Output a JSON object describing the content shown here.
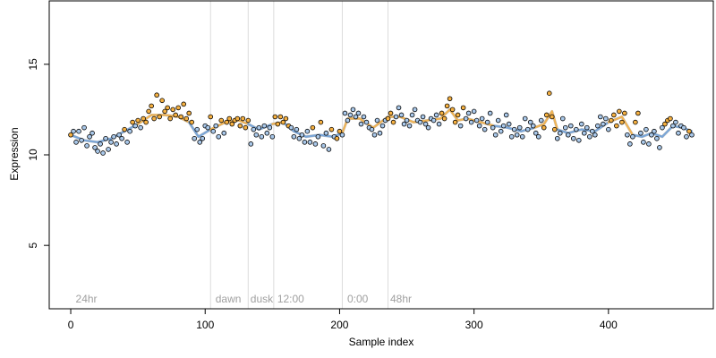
{
  "chart_data": {
    "type": "scatter",
    "title": "",
    "xlabel": "Sample index",
    "ylabel": "Expression",
    "xlim": [
      -16,
      478
    ],
    "ylim": [
      1.5,
      18.5
    ],
    "x_ticks": [
      0,
      100,
      200,
      300,
      400
    ],
    "y_ticks": [
      5,
      10,
      15
    ],
    "grid": false,
    "legend": "none",
    "vlines": [
      104,
      132,
      151,
      202,
      236
    ],
    "annotations": [
      {
        "label": "24hr",
        "x": 3
      },
      {
        "label": "dawn",
        "x": 107
      },
      {
        "label": "dusk",
        "x": 133
      },
      {
        "label": "12:00",
        "x": 153
      },
      {
        "label": "0:00",
        "x": 205
      },
      {
        "label": "48hr",
        "x": 237
      }
    ],
    "colors": {
      "orange": "#f5b041",
      "blue": "#a9c8ea",
      "trend_orange": "#f0b456",
      "trend_blue": "#7aa6d8",
      "trend_grey": "#9a9a9a",
      "vline": "#dcdcdc"
    },
    "trend": [
      [
        0,
        11.1
      ],
      [
        10,
        10.8
      ],
      [
        20,
        10.7
      ],
      [
        30,
        10.9
      ],
      [
        40,
        11.3
      ],
      [
        50,
        11.7
      ],
      [
        60,
        12.2
      ],
      [
        70,
        12.2
      ],
      [
        80,
        12.1
      ],
      [
        88,
        11.8
      ],
      [
        95,
        11.0
      ],
      [
        104,
        11.4
      ],
      [
        115,
        11.8
      ],
      [
        125,
        11.9
      ],
      [
        132,
        11.7
      ],
      [
        140,
        11.4
      ],
      [
        150,
        11.7
      ],
      [
        158,
        11.8
      ],
      [
        166,
        11.3
      ],
      [
        175,
        11.0
      ],
      [
        185,
        11.1
      ],
      [
        195,
        11.0
      ],
      [
        202,
        11.2
      ],
      [
        206,
        12.0
      ],
      [
        215,
        12.0
      ],
      [
        225,
        11.5
      ],
      [
        236,
        12.1
      ],
      [
        245,
        12.1
      ],
      [
        255,
        11.8
      ],
      [
        265,
        11.9
      ],
      [
        275,
        12.0
      ],
      [
        282,
        12.5
      ],
      [
        288,
        11.9
      ],
      [
        295,
        12.0
      ],
      [
        305,
        11.8
      ],
      [
        315,
        11.6
      ],
      [
        325,
        11.5
      ],
      [
        335,
        11.3
      ],
      [
        345,
        11.5
      ],
      [
        352,
        11.7
      ],
      [
        358,
        12.4
      ],
      [
        362,
        11.4
      ],
      [
        370,
        11.2
      ],
      [
        380,
        11.4
      ],
      [
        390,
        11.3
      ],
      [
        400,
        11.8
      ],
      [
        410,
        12.1
      ],
      [
        418,
        11.1
      ],
      [
        425,
        11.0
      ],
      [
        432,
        11.2
      ],
      [
        440,
        11.0
      ],
      [
        448,
        11.6
      ],
      [
        455,
        11.5
      ],
      [
        462,
        11.3
      ]
    ],
    "points": [
      {
        "x": 0,
        "y": 11.1,
        "c": "o"
      },
      {
        "x": 2,
        "y": 11.3,
        "c": "b"
      },
      {
        "x": 4,
        "y": 10.7,
        "c": "b"
      },
      {
        "x": 6,
        "y": 11.3,
        "c": "b"
      },
      {
        "x": 8,
        "y": 10.8,
        "c": "b"
      },
      {
        "x": 10,
        "y": 11.5,
        "c": "b"
      },
      {
        "x": 12,
        "y": 10.5,
        "c": "b"
      },
      {
        "x": 14,
        "y": 11.0,
        "c": "b"
      },
      {
        "x": 16,
        "y": 11.2,
        "c": "b"
      },
      {
        "x": 18,
        "y": 10.4,
        "c": "b"
      },
      {
        "x": 20,
        "y": 10.2,
        "c": "b"
      },
      {
        "x": 22,
        "y": 10.6,
        "c": "b"
      },
      {
        "x": 24,
        "y": 10.1,
        "c": "b"
      },
      {
        "x": 26,
        "y": 10.9,
        "c": "b"
      },
      {
        "x": 28,
        "y": 10.3,
        "c": "b"
      },
      {
        "x": 30,
        "y": 10.7,
        "c": "b"
      },
      {
        "x": 32,
        "y": 11.0,
        "c": "b"
      },
      {
        "x": 34,
        "y": 10.6,
        "c": "b"
      },
      {
        "x": 36,
        "y": 11.1,
        "c": "b"
      },
      {
        "x": 38,
        "y": 10.9,
        "c": "b"
      },
      {
        "x": 40,
        "y": 11.4,
        "c": "o"
      },
      {
        "x": 42,
        "y": 10.7,
        "c": "b"
      },
      {
        "x": 44,
        "y": 11.3,
        "c": "b"
      },
      {
        "x": 46,
        "y": 11.8,
        "c": "o"
      },
      {
        "x": 48,
        "y": 11.6,
        "c": "b"
      },
      {
        "x": 50,
        "y": 11.9,
        "c": "o"
      },
      {
        "x": 52,
        "y": 11.5,
        "c": "b"
      },
      {
        "x": 54,
        "y": 12.0,
        "c": "o"
      },
      {
        "x": 56,
        "y": 11.8,
        "c": "o"
      },
      {
        "x": 58,
        "y": 12.4,
        "c": "o"
      },
      {
        "x": 60,
        "y": 12.7,
        "c": "o"
      },
      {
        "x": 62,
        "y": 12.0,
        "c": "o"
      },
      {
        "x": 64,
        "y": 13.3,
        "c": "o"
      },
      {
        "x": 66,
        "y": 12.1,
        "c": "o"
      },
      {
        "x": 68,
        "y": 13.0,
        "c": "o"
      },
      {
        "x": 70,
        "y": 12.4,
        "c": "o"
      },
      {
        "x": 72,
        "y": 12.6,
        "c": "o"
      },
      {
        "x": 74,
        "y": 12.0,
        "c": "o"
      },
      {
        "x": 76,
        "y": 12.5,
        "c": "o"
      },
      {
        "x": 78,
        "y": 12.2,
        "c": "o"
      },
      {
        "x": 80,
        "y": 12.6,
        "c": "o"
      },
      {
        "x": 82,
        "y": 12.1,
        "c": "o"
      },
      {
        "x": 84,
        "y": 12.8,
        "c": "o"
      },
      {
        "x": 86,
        "y": 12.0,
        "c": "o"
      },
      {
        "x": 88,
        "y": 12.3,
        "c": "o"
      },
      {
        "x": 90,
        "y": 11.8,
        "c": "o"
      },
      {
        "x": 92,
        "y": 10.9,
        "c": "b"
      },
      {
        "x": 94,
        "y": 11.4,
        "c": "b"
      },
      {
        "x": 96,
        "y": 10.7,
        "c": "b"
      },
      {
        "x": 98,
        "y": 10.9,
        "c": "b"
      },
      {
        "x": 100,
        "y": 11.6,
        "c": "b"
      },
      {
        "x": 102,
        "y": 11.5,
        "c": "b"
      },
      {
        "x": 104,
        "y": 12.1,
        "c": "o"
      },
      {
        "x": 106,
        "y": 11.3,
        "c": "b"
      },
      {
        "x": 108,
        "y": 11.6,
        "c": "b"
      },
      {
        "x": 110,
        "y": 11.0,
        "c": "b"
      },
      {
        "x": 112,
        "y": 11.9,
        "c": "o"
      },
      {
        "x": 114,
        "y": 11.2,
        "c": "b"
      },
      {
        "x": 116,
        "y": 11.8,
        "c": "o"
      },
      {
        "x": 118,
        "y": 12.0,
        "c": "o"
      },
      {
        "x": 120,
        "y": 11.7,
        "c": "o"
      },
      {
        "x": 122,
        "y": 11.9,
        "c": "o"
      },
      {
        "x": 124,
        "y": 12.0,
        "c": "o"
      },
      {
        "x": 126,
        "y": 11.6,
        "c": "o"
      },
      {
        "x": 128,
        "y": 12.0,
        "c": "o"
      },
      {
        "x": 130,
        "y": 11.5,
        "c": "o"
      },
      {
        "x": 132,
        "y": 11.9,
        "c": "o"
      },
      {
        "x": 134,
        "y": 10.6,
        "c": "b"
      },
      {
        "x": 136,
        "y": 11.4,
        "c": "b"
      },
      {
        "x": 138,
        "y": 11.1,
        "c": "b"
      },
      {
        "x": 140,
        "y": 11.5,
        "c": "b"
      },
      {
        "x": 142,
        "y": 11.0,
        "c": "b"
      },
      {
        "x": 144,
        "y": 11.6,
        "c": "b"
      },
      {
        "x": 146,
        "y": 11.2,
        "c": "b"
      },
      {
        "x": 148,
        "y": 11.5,
        "c": "b"
      },
      {
        "x": 150,
        "y": 11.0,
        "c": "b"
      },
      {
        "x": 152,
        "y": 12.1,
        "c": "o"
      },
      {
        "x": 154,
        "y": 11.7,
        "c": "o"
      },
      {
        "x": 156,
        "y": 12.1,
        "c": "o"
      },
      {
        "x": 158,
        "y": 11.8,
        "c": "o"
      },
      {
        "x": 160,
        "y": 12.0,
        "c": "o"
      },
      {
        "x": 162,
        "y": 11.6,
        "c": "o"
      },
      {
        "x": 164,
        "y": 11.5,
        "c": "b"
      },
      {
        "x": 166,
        "y": 11.0,
        "c": "b"
      },
      {
        "x": 168,
        "y": 11.4,
        "c": "b"
      },
      {
        "x": 170,
        "y": 10.9,
        "c": "b"
      },
      {
        "x": 172,
        "y": 11.1,
        "c": "b"
      },
      {
        "x": 174,
        "y": 10.7,
        "c": "b"
      },
      {
        "x": 176,
        "y": 11.3,
        "c": "b"
      },
      {
        "x": 178,
        "y": 10.7,
        "c": "b"
      },
      {
        "x": 180,
        "y": 11.5,
        "c": "o"
      },
      {
        "x": 182,
        "y": 10.6,
        "c": "b"
      },
      {
        "x": 184,
        "y": 11.0,
        "c": "b"
      },
      {
        "x": 186,
        "y": 11.8,
        "c": "o"
      },
      {
        "x": 188,
        "y": 10.5,
        "c": "b"
      },
      {
        "x": 190,
        "y": 11.2,
        "c": "b"
      },
      {
        "x": 192,
        "y": 10.3,
        "c": "b"
      },
      {
        "x": 194,
        "y": 11.4,
        "c": "o"
      },
      {
        "x": 196,
        "y": 11.0,
        "c": "b"
      },
      {
        "x": 198,
        "y": 10.9,
        "c": "o"
      },
      {
        "x": 200,
        "y": 11.3,
        "c": "o"
      },
      {
        "x": 202,
        "y": 11.1,
        "c": "b"
      },
      {
        "x": 204,
        "y": 12.3,
        "c": "b"
      },
      {
        "x": 206,
        "y": 11.9,
        "c": "b"
      },
      {
        "x": 208,
        "y": 12.2,
        "c": "b"
      },
      {
        "x": 210,
        "y": 12.5,
        "c": "b"
      },
      {
        "x": 212,
        "y": 12.1,
        "c": "b"
      },
      {
        "x": 214,
        "y": 12.3,
        "c": "b"
      },
      {
        "x": 216,
        "y": 11.7,
        "c": "b"
      },
      {
        "x": 218,
        "y": 12.1,
        "c": "b"
      },
      {
        "x": 220,
        "y": 11.8,
        "c": "b"
      },
      {
        "x": 222,
        "y": 11.5,
        "c": "b"
      },
      {
        "x": 224,
        "y": 11.4,
        "c": "b"
      },
      {
        "x": 226,
        "y": 11.1,
        "c": "b"
      },
      {
        "x": 228,
        "y": 11.9,
        "c": "b"
      },
      {
        "x": 230,
        "y": 11.2,
        "c": "b"
      },
      {
        "x": 232,
        "y": 11.6,
        "c": "b"
      },
      {
        "x": 234,
        "y": 11.9,
        "c": "b"
      },
      {
        "x": 236,
        "y": 12.0,
        "c": "o"
      },
      {
        "x": 238,
        "y": 12.3,
        "c": "o"
      },
      {
        "x": 240,
        "y": 11.8,
        "c": "o"
      },
      {
        "x": 242,
        "y": 12.1,
        "c": "b"
      },
      {
        "x": 244,
        "y": 12.6,
        "c": "b"
      },
      {
        "x": 246,
        "y": 12.2,
        "c": "b"
      },
      {
        "x": 248,
        "y": 11.7,
        "c": "b"
      },
      {
        "x": 250,
        "y": 11.9,
        "c": "b"
      },
      {
        "x": 252,
        "y": 11.6,
        "c": "b"
      },
      {
        "x": 254,
        "y": 12.2,
        "c": "b"
      },
      {
        "x": 256,
        "y": 12.5,
        "c": "b"
      },
      {
        "x": 258,
        "y": 11.9,
        "c": "b"
      },
      {
        "x": 260,
        "y": 11.8,
        "c": "b"
      },
      {
        "x": 262,
        "y": 12.1,
        "c": "b"
      },
      {
        "x": 264,
        "y": 11.7,
        "c": "b"
      },
      {
        "x": 266,
        "y": 11.5,
        "c": "b"
      },
      {
        "x": 268,
        "y": 12.0,
        "c": "b"
      },
      {
        "x": 270,
        "y": 11.9,
        "c": "b"
      },
      {
        "x": 272,
        "y": 12.2,
        "c": "b"
      },
      {
        "x": 274,
        "y": 11.7,
        "c": "b"
      },
      {
        "x": 276,
        "y": 12.3,
        "c": "o"
      },
      {
        "x": 278,
        "y": 12.0,
        "c": "o"
      },
      {
        "x": 280,
        "y": 12.7,
        "c": "o"
      },
      {
        "x": 282,
        "y": 13.1,
        "c": "o"
      },
      {
        "x": 284,
        "y": 12.5,
        "c": "o"
      },
      {
        "x": 286,
        "y": 11.8,
        "c": "o"
      },
      {
        "x": 288,
        "y": 12.2,
        "c": "o"
      },
      {
        "x": 290,
        "y": 11.6,
        "c": "b"
      },
      {
        "x": 292,
        "y": 12.6,
        "c": "o"
      },
      {
        "x": 294,
        "y": 12.0,
        "c": "b"
      },
      {
        "x": 296,
        "y": 12.3,
        "c": "b"
      },
      {
        "x": 298,
        "y": 11.8,
        "c": "b"
      },
      {
        "x": 300,
        "y": 12.4,
        "c": "b"
      },
      {
        "x": 302,
        "y": 11.9,
        "c": "b"
      },
      {
        "x": 304,
        "y": 11.6,
        "c": "b"
      },
      {
        "x": 306,
        "y": 12.0,
        "c": "b"
      },
      {
        "x": 308,
        "y": 11.4,
        "c": "b"
      },
      {
        "x": 310,
        "y": 11.8,
        "c": "b"
      },
      {
        "x": 312,
        "y": 12.3,
        "c": "b"
      },
      {
        "x": 314,
        "y": 11.5,
        "c": "b"
      },
      {
        "x": 316,
        "y": 11.1,
        "c": "b"
      },
      {
        "x": 318,
        "y": 11.9,
        "c": "b"
      },
      {
        "x": 320,
        "y": 11.3,
        "c": "b"
      },
      {
        "x": 322,
        "y": 11.6,
        "c": "b"
      },
      {
        "x": 324,
        "y": 12.2,
        "c": "b"
      },
      {
        "x": 326,
        "y": 11.7,
        "c": "b"
      },
      {
        "x": 328,
        "y": 11.0,
        "c": "b"
      },
      {
        "x": 330,
        "y": 11.4,
        "c": "b"
      },
      {
        "x": 332,
        "y": 11.1,
        "c": "b"
      },
      {
        "x": 334,
        "y": 11.5,
        "c": "b"
      },
      {
        "x": 336,
        "y": 11.0,
        "c": "b"
      },
      {
        "x": 338,
        "y": 12.0,
        "c": "b"
      },
      {
        "x": 340,
        "y": 11.4,
        "c": "b"
      },
      {
        "x": 342,
        "y": 11.8,
        "c": "b"
      },
      {
        "x": 344,
        "y": 11.6,
        "c": "b"
      },
      {
        "x": 346,
        "y": 11.2,
        "c": "b"
      },
      {
        "x": 348,
        "y": 11.0,
        "c": "b"
      },
      {
        "x": 350,
        "y": 11.9,
        "c": "b"
      },
      {
        "x": 352,
        "y": 11.5,
        "c": "o"
      },
      {
        "x": 354,
        "y": 12.2,
        "c": "o"
      },
      {
        "x": 356,
        "y": 13.4,
        "c": "o"
      },
      {
        "x": 358,
        "y": 12.1,
        "c": "o"
      },
      {
        "x": 360,
        "y": 11.4,
        "c": "o"
      },
      {
        "x": 362,
        "y": 10.9,
        "c": "b"
      },
      {
        "x": 364,
        "y": 11.2,
        "c": "b"
      },
      {
        "x": 366,
        "y": 12.0,
        "c": "b"
      },
      {
        "x": 368,
        "y": 11.5,
        "c": "b"
      },
      {
        "x": 370,
        "y": 11.1,
        "c": "b"
      },
      {
        "x": 372,
        "y": 11.6,
        "c": "b"
      },
      {
        "x": 374,
        "y": 10.9,
        "c": "b"
      },
      {
        "x": 376,
        "y": 11.4,
        "c": "b"
      },
      {
        "x": 378,
        "y": 10.8,
        "c": "b"
      },
      {
        "x": 380,
        "y": 11.7,
        "c": "b"
      },
      {
        "x": 382,
        "y": 11.2,
        "c": "b"
      },
      {
        "x": 384,
        "y": 11.5,
        "c": "b"
      },
      {
        "x": 386,
        "y": 11.0,
        "c": "b"
      },
      {
        "x": 388,
        "y": 11.3,
        "c": "b"
      },
      {
        "x": 390,
        "y": 11.1,
        "c": "b"
      },
      {
        "x": 392,
        "y": 11.6,
        "c": "b"
      },
      {
        "x": 394,
        "y": 12.1,
        "c": "b"
      },
      {
        "x": 396,
        "y": 11.7,
        "c": "b"
      },
      {
        "x": 398,
        "y": 12.0,
        "c": "b"
      },
      {
        "x": 400,
        "y": 11.4,
        "c": "b"
      },
      {
        "x": 402,
        "y": 11.9,
        "c": "o"
      },
      {
        "x": 404,
        "y": 12.2,
        "c": "o"
      },
      {
        "x": 406,
        "y": 11.6,
        "c": "o"
      },
      {
        "x": 408,
        "y": 12.4,
        "c": "o"
      },
      {
        "x": 410,
        "y": 11.8,
        "c": "o"
      },
      {
        "x": 412,
        "y": 12.3,
        "c": "o"
      },
      {
        "x": 414,
        "y": 11.1,
        "c": "b"
      },
      {
        "x": 416,
        "y": 10.6,
        "c": "b"
      },
      {
        "x": 418,
        "y": 11.0,
        "c": "b"
      },
      {
        "x": 420,
        "y": 11.8,
        "c": "o"
      },
      {
        "x": 422,
        "y": 12.3,
        "c": "o"
      },
      {
        "x": 424,
        "y": 11.2,
        "c": "b"
      },
      {
        "x": 426,
        "y": 10.7,
        "c": "b"
      },
      {
        "x": 428,
        "y": 11.4,
        "c": "b"
      },
      {
        "x": 430,
        "y": 10.6,
        "c": "b"
      },
      {
        "x": 432,
        "y": 11.1,
        "c": "b"
      },
      {
        "x": 434,
        "y": 11.3,
        "c": "b"
      },
      {
        "x": 436,
        "y": 10.9,
        "c": "b"
      },
      {
        "x": 438,
        "y": 10.4,
        "c": "b"
      },
      {
        "x": 440,
        "y": 11.5,
        "c": "b"
      },
      {
        "x": 442,
        "y": 11.7,
        "c": "o"
      },
      {
        "x": 444,
        "y": 11.9,
        "c": "o"
      },
      {
        "x": 446,
        "y": 12.0,
        "c": "o"
      },
      {
        "x": 448,
        "y": 11.6,
        "c": "b"
      },
      {
        "x": 450,
        "y": 11.8,
        "c": "b"
      },
      {
        "x": 452,
        "y": 11.2,
        "c": "b"
      },
      {
        "x": 454,
        "y": 11.6,
        "c": "b"
      },
      {
        "x": 456,
        "y": 11.5,
        "c": "b"
      },
      {
        "x": 458,
        "y": 11.0,
        "c": "b"
      },
      {
        "x": 460,
        "y": 11.3,
        "c": "o"
      },
      {
        "x": 462,
        "y": 11.1,
        "c": "b"
      }
    ]
  }
}
